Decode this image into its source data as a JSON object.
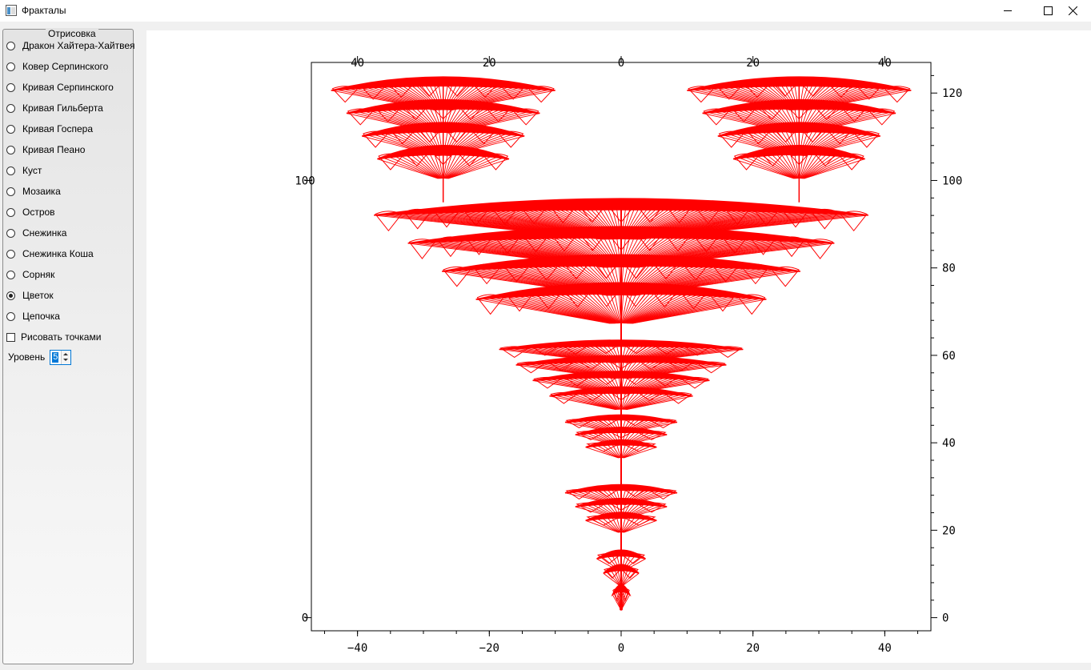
{
  "window": {
    "title": "Фракталы"
  },
  "panel": {
    "group_title": "Отрисовка",
    "options": [
      {
        "label": "Дракон Хайтера-Хайтвея",
        "checked": false
      },
      {
        "label": "Ковер Серпинского",
        "checked": false
      },
      {
        "label": "Кривая Серпинского",
        "checked": false
      },
      {
        "label": "Кривая Гильберта",
        "checked": false
      },
      {
        "label": "Кривая Госпера",
        "checked": false
      },
      {
        "label": "Кривая Пеано",
        "checked": false
      },
      {
        "label": "Куст",
        "checked": false
      },
      {
        "label": "Мозаика",
        "checked": false
      },
      {
        "label": "Остров",
        "checked": false
      },
      {
        "label": "Снежинка",
        "checked": false
      },
      {
        "label": "Снежинка Коша",
        "checked": false
      },
      {
        "label": "Сорняк",
        "checked": false
      },
      {
        "label": "Цветок",
        "checked": true
      },
      {
        "label": "Цепочка",
        "checked": false
      }
    ],
    "draw_points": {
      "label": "Рисовать точками",
      "checked": false
    },
    "level": {
      "label": "Уровень",
      "value": "5"
    }
  },
  "chart_data": {
    "type": "line",
    "title": "",
    "xlabel": "",
    "ylabel": "",
    "xlim": [
      -47,
      47
    ],
    "ylim": [
      -3,
      127
    ],
    "x_ticks": [
      "−40",
      "−20",
      "0",
      "20",
      "40"
    ],
    "x_tick_values": [
      -40,
      -20,
      0,
      20,
      40
    ],
    "x_ticks_top": [
      "40",
      "20",
      "0",
      "20",
      "40"
    ],
    "y_ticks": [
      "0",
      "20",
      "40",
      "60",
      "80",
      "100",
      "120"
    ],
    "y_tick_values": [
      0,
      20,
      40,
      60,
      80,
      100,
      120
    ],
    "y_ticks_left": [
      "0",
      "100"
    ],
    "grid": false,
    "series": [
      {
        "color": "#ff0000",
        "fractal_stem": {
          "x": 0,
          "y_min": 2,
          "y_max": 95
        }
      }
    ],
    "fans": [
      {
        "cx": 0,
        "top": 95,
        "bottom": 68,
        "halfwidth": 37.5,
        "tiers": 4
      },
      {
        "cx": 0,
        "top": 63,
        "bottom": 48,
        "halfwidth": 18.5,
        "tiers": 4
      },
      {
        "cx": 0,
        "top": 46,
        "bottom": 37,
        "halfwidth": 8.5,
        "tiers": 3
      },
      {
        "cx": 0,
        "top": 30,
        "bottom": 20,
        "halfwidth": 8.5,
        "tiers": 3
      },
      {
        "cx": 0,
        "top": 15,
        "bottom": 8,
        "halfwidth": 3.7,
        "tiers": 2
      },
      {
        "cx": 0,
        "top": 7,
        "bottom": 3,
        "halfwidth": 1.3,
        "tiers": 1
      },
      {
        "cx": -27,
        "top": 123,
        "bottom": 101,
        "halfwidth": 17,
        "tiers": 4
      },
      {
        "cx": 27,
        "top": 123,
        "bottom": 101,
        "halfwidth": 17,
        "tiers": 4
      }
    ]
  }
}
